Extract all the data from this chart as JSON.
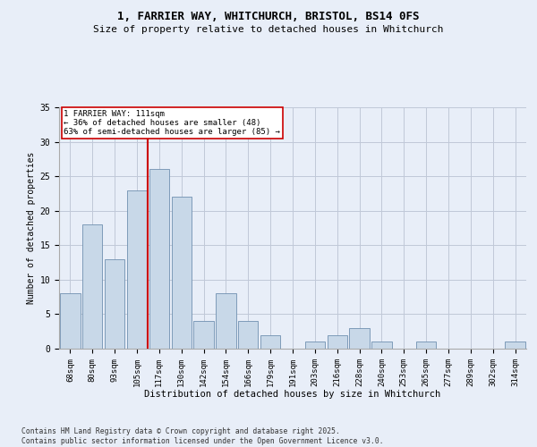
{
  "title_line1": "1, FARRIER WAY, WHITCHURCH, BRISTOL, BS14 0FS",
  "title_line2": "Size of property relative to detached houses in Whitchurch",
  "xlabel": "Distribution of detached houses by size in Whitchurch",
  "ylabel": "Number of detached properties",
  "categories": [
    "68sqm",
    "80sqm",
    "93sqm",
    "105sqm",
    "117sqm",
    "130sqm",
    "142sqm",
    "154sqm",
    "166sqm",
    "179sqm",
    "191sqm",
    "203sqm",
    "216sqm",
    "228sqm",
    "240sqm",
    "253sqm",
    "265sqm",
    "277sqm",
    "289sqm",
    "302sqm",
    "314sqm"
  ],
  "values": [
    8,
    18,
    13,
    23,
    26,
    22,
    4,
    8,
    4,
    2,
    0,
    1,
    2,
    3,
    1,
    0,
    1,
    0,
    0,
    0,
    1
  ],
  "bar_color": "#c8d8e8",
  "bar_edge_color": "#7090b0",
  "bar_linewidth": 0.6,
  "grid_color": "#c0c8d8",
  "background_color": "#e8eef8",
  "vline_color": "#cc0000",
  "annotation_title": "1 FARRIER WAY: 111sqm",
  "annotation_line1": "← 36% of detached houses are smaller (48)",
  "annotation_line2": "63% of semi-detached houses are larger (85) →",
  "annotation_box_color": "#ffffff",
  "annotation_box_edge": "#cc0000",
  "ylim": [
    0,
    35
  ],
  "yticks": [
    0,
    5,
    10,
    15,
    20,
    25,
    30,
    35
  ],
  "footnote_line1": "Contains HM Land Registry data © Crown copyright and database right 2025.",
  "footnote_line2": "Contains public sector information licensed under the Open Government Licence v3.0."
}
